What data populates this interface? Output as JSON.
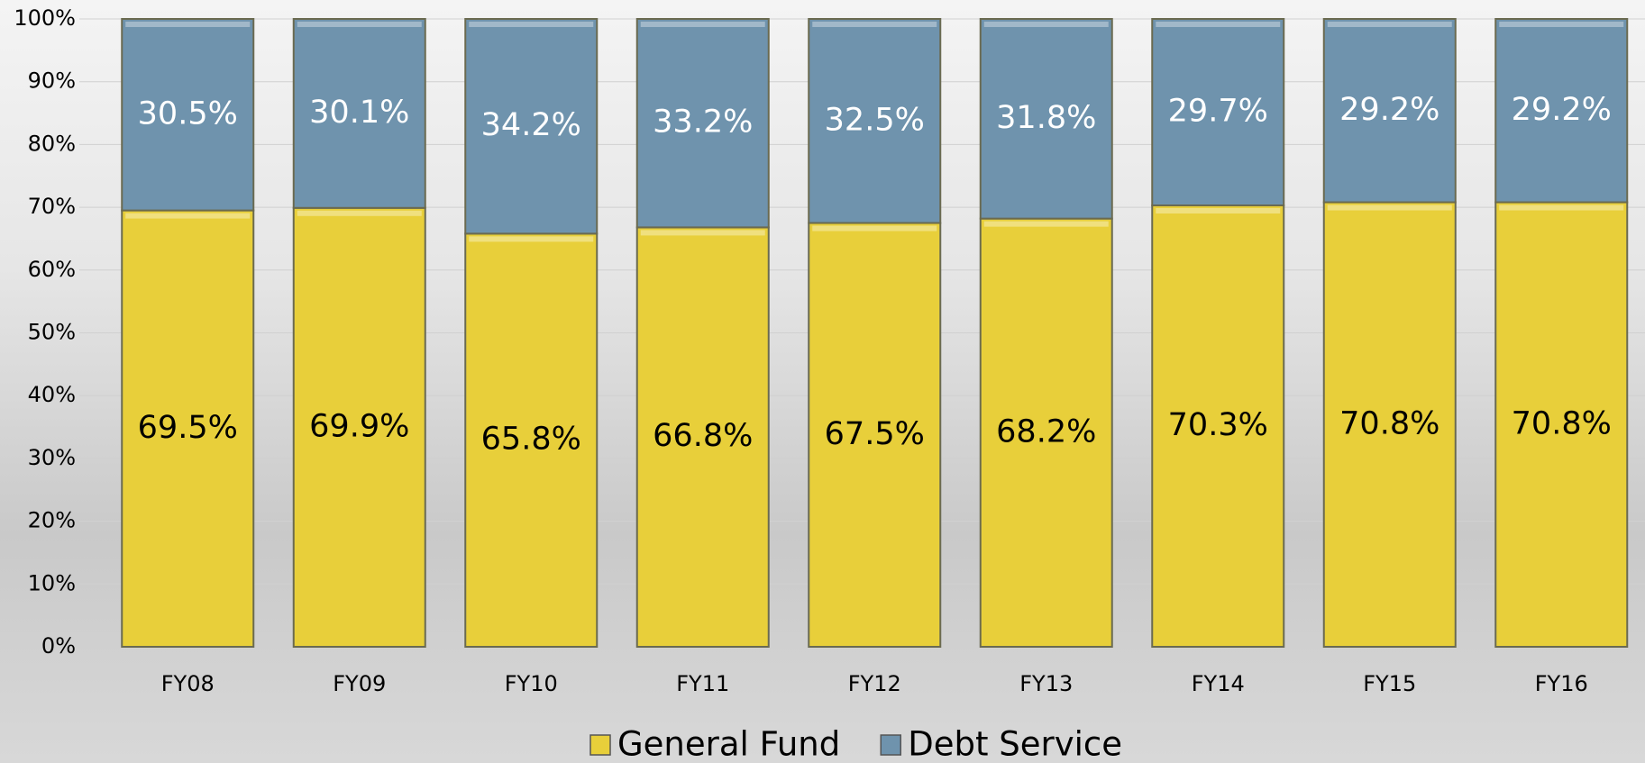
{
  "chart_data": {
    "type": "stacked_bar",
    "categories": [
      "FY08",
      "FY09",
      "FY10",
      "FY11",
      "FY12",
      "FY13",
      "FY14",
      "FY15",
      "FY16"
    ],
    "series": [
      {
        "name": "General Fund",
        "color": "#e8cf3a",
        "label_color": "#000000",
        "values": [
          69.5,
          69.9,
          65.8,
          66.8,
          67.5,
          68.2,
          70.3,
          70.8,
          70.8
        ],
        "value_labels": [
          "69.5%",
          "69.9%",
          "65.8%",
          "66.8%",
          "67.5%",
          "68.2%",
          "70.3%",
          "70.8%",
          "70.8%"
        ]
      },
      {
        "name": "Debt Service",
        "color": "#6f93ad",
        "label_color": "#ffffff",
        "values": [
          30.5,
          30.1,
          34.2,
          33.2,
          32.5,
          31.8,
          29.7,
          29.2,
          29.2
        ],
        "value_labels": [
          "30.5%",
          "30.1%",
          "34.2%",
          "33.2%",
          "32.5%",
          "31.8%",
          "29.7%",
          "29.2%",
          "29.2%"
        ]
      }
    ],
    "ylim": [
      0,
      100
    ],
    "yticks": [
      {
        "value": 0,
        "label": "0%"
      },
      {
        "value": 10,
        "label": "10%"
      },
      {
        "value": 20,
        "label": "20%"
      },
      {
        "value": 30,
        "label": "30%"
      },
      {
        "value": 40,
        "label": "40%"
      },
      {
        "value": 50,
        "label": "50%"
      },
      {
        "value": 60,
        "label": "60%"
      },
      {
        "value": 70,
        "label": "70%"
      },
      {
        "value": 80,
        "label": "80%"
      },
      {
        "value": 90,
        "label": "90%"
      },
      {
        "value": 100,
        "label": "100%"
      }
    ],
    "grid": true,
    "legend": "bottom"
  }
}
